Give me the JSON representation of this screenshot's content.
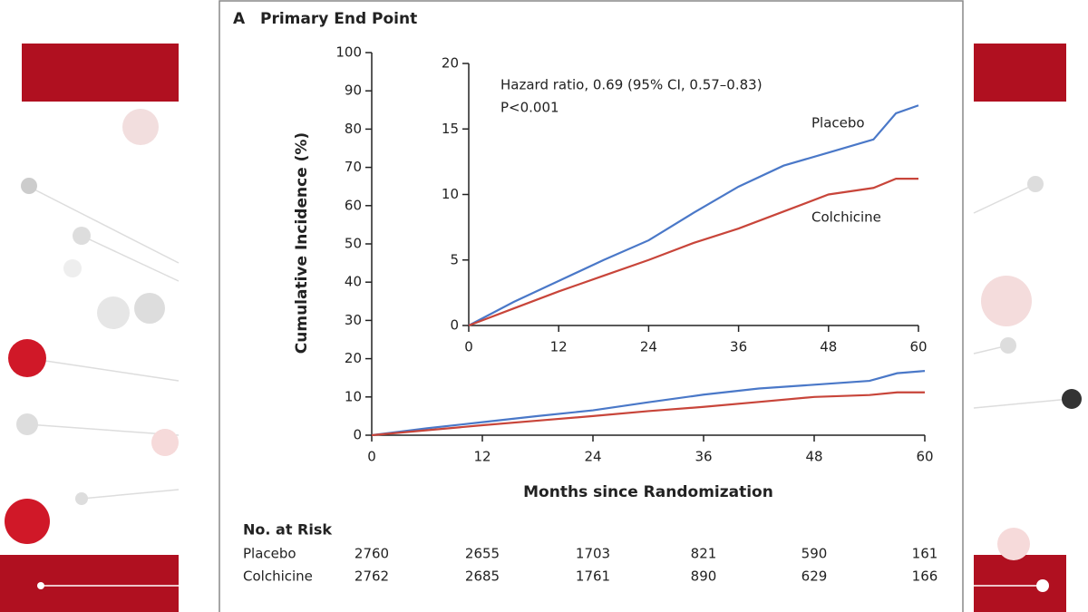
{
  "chart_data": [
    {
      "type": "line",
      "panel": "A",
      "title": "Primary End Point",
      "x_label": "Months since Randomization",
      "y_label": "Cumulative Incidence (%)",
      "x": [
        0,
        6,
        12,
        18,
        24,
        30,
        36,
        42,
        48,
        54,
        57,
        60
      ],
      "series": [
        {
          "name": "Placebo",
          "color": "#4a78c8",
          "values": [
            0,
            1.8,
            3.4,
            5.0,
            6.5,
            8.6,
            10.6,
            12.2,
            13.2,
            14.2,
            16.2,
            16.8
          ]
        },
        {
          "name": "Colchicine",
          "color": "#c8453a",
          "values": [
            0,
            1.3,
            2.6,
            3.8,
            5.0,
            6.3,
            7.4,
            8.7,
            10.0,
            10.5,
            11.2,
            11.2
          ]
        }
      ],
      "xlim": [
        0,
        60
      ],
      "xticks": [
        0,
        12,
        24,
        36,
        48,
        60
      ],
      "ylim": [
        0,
        100
      ],
      "yticks": [
        0,
        10,
        20,
        30,
        40,
        50,
        60,
        70,
        80,
        90,
        100
      ],
      "risk_table": {
        "title": "No. at Risk",
        "rows": [
          {
            "name": "Placebo",
            "values": [
              2760,
              2655,
              1703,
              821,
              590,
              161
            ]
          },
          {
            "name": "Colchicine",
            "values": [
              2762,
              2685,
              1761,
              890,
              629,
              166
            ]
          }
        ]
      }
    },
    {
      "type": "line",
      "annotations": [
        "Hazard ratio, 0.69 (95% CI, 0.57–0.83)",
        "P<0.001"
      ],
      "x": [
        0,
        6,
        12,
        18,
        24,
        30,
        36,
        42,
        48,
        54,
        57,
        60
      ],
      "series": [
        {
          "name": "Placebo",
          "color": "#4a78c8",
          "values": [
            0,
            1.8,
            3.4,
            5.0,
            6.5,
            8.6,
            10.6,
            12.2,
            13.2,
            14.2,
            16.2,
            16.8
          ]
        },
        {
          "name": "Colchicine",
          "color": "#c8453a",
          "values": [
            0,
            1.3,
            2.6,
            3.8,
            5.0,
            6.3,
            7.4,
            8.7,
            10.0,
            10.5,
            11.2,
            11.2
          ]
        }
      ],
      "xlim": [
        0,
        60
      ],
      "xticks": [
        0,
        12,
        24,
        36,
        48,
        60
      ],
      "ylim": [
        0,
        20
      ],
      "yticks": [
        0,
        5,
        10,
        15,
        20
      ]
    }
  ]
}
